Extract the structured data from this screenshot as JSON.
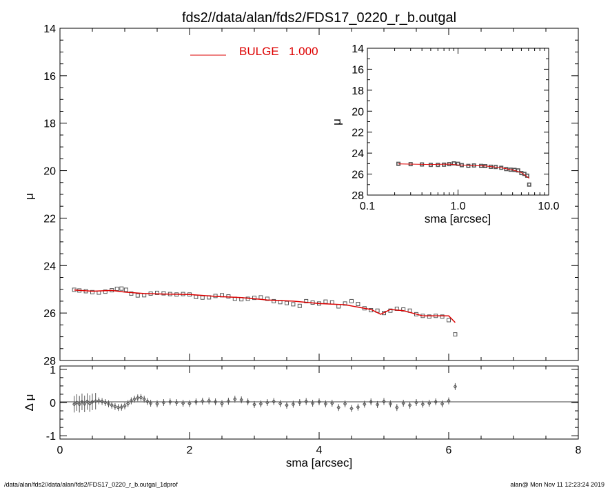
{
  "page_title": "fds2//data/alan/fds2/FDS17_0220_r_b.outgal",
  "footer": {
    "left": "/data/alan/fds2//data/alan/fds2/FDS17_0220_r_b.outgal_1dprof",
    "right": "alan@  Mon Nov 11 12:23:24 2019"
  },
  "colors": {
    "model": "#dd0000",
    "data": "#555555",
    "axes": "#000000"
  },
  "chart_data": [
    {
      "id": "main",
      "type": "scatter",
      "title": "fds2//data/alan/fds2/FDS17_0220_r_b.outgal",
      "xlabel": "",
      "ylabel": "μ",
      "xlim": [
        0,
        8
      ],
      "ylim": [
        28,
        14
      ],
      "y_inverted": true,
      "yticks": [
        "14",
        "16",
        "18",
        "20",
        "22",
        "24",
        "26",
        "28"
      ],
      "legend": {
        "label": "BULGE",
        "value": "1.000",
        "placement": "top-center"
      },
      "series": [
        {
          "name": "BULGE",
          "kind": "line",
          "points": [
            [
              0.22,
              25.03
            ],
            [
              0.5,
              25.08
            ],
            [
              0.8,
              25.05
            ],
            [
              1.0,
              25.12
            ],
            [
              1.3,
              25.18
            ],
            [
              1.6,
              25.2
            ],
            [
              2.0,
              25.22
            ],
            [
              2.4,
              25.3
            ],
            [
              2.8,
              25.35
            ],
            [
              3.2,
              25.45
            ],
            [
              3.6,
              25.5
            ],
            [
              4.0,
              25.6
            ],
            [
              4.4,
              25.65
            ],
            [
              4.8,
              25.85
            ],
            [
              4.95,
              26.05
            ],
            [
              5.1,
              25.85
            ],
            [
              5.3,
              25.9
            ],
            [
              5.6,
              26.12
            ],
            [
              6.0,
              26.12
            ],
            [
              6.1,
              26.4
            ]
          ]
        },
        {
          "name": "data",
          "kind": "squares",
          "points": [
            [
              0.22,
              25.02
            ],
            [
              0.3,
              25.05
            ],
            [
              0.4,
              25.08
            ],
            [
              0.5,
              25.12
            ],
            [
              0.6,
              25.14
            ],
            [
              0.7,
              25.1
            ],
            [
              0.8,
              25.04
            ],
            [
              0.88,
              24.98
            ],
            [
              0.95,
              24.97
            ],
            [
              1.02,
              25.02
            ],
            [
              1.1,
              25.18
            ],
            [
              1.2,
              25.26
            ],
            [
              1.3,
              25.25
            ],
            [
              1.4,
              25.18
            ],
            [
              1.5,
              25.15
            ],
            [
              1.6,
              25.17
            ],
            [
              1.7,
              25.2
            ],
            [
              1.8,
              25.22
            ],
            [
              1.9,
              25.2
            ],
            [
              2.0,
              25.22
            ],
            [
              2.1,
              25.32
            ],
            [
              2.2,
              25.35
            ],
            [
              2.3,
              25.34
            ],
            [
              2.4,
              25.28
            ],
            [
              2.5,
              25.25
            ],
            [
              2.6,
              25.3
            ],
            [
              2.7,
              25.4
            ],
            [
              2.8,
              25.42
            ],
            [
              2.9,
              25.4
            ],
            [
              3.0,
              25.36
            ],
            [
              3.1,
              25.34
            ],
            [
              3.2,
              25.4
            ],
            [
              3.3,
              25.5
            ],
            [
              3.4,
              25.54
            ],
            [
              3.5,
              25.58
            ],
            [
              3.6,
              25.63
            ],
            [
              3.7,
              25.7
            ],
            [
              3.8,
              25.5
            ],
            [
              3.9,
              25.56
            ],
            [
              4.0,
              25.6
            ],
            [
              4.1,
              25.52
            ],
            [
              4.2,
              25.55
            ],
            [
              4.3,
              25.72
            ],
            [
              4.4,
              25.6
            ],
            [
              4.5,
              25.5
            ],
            [
              4.6,
              25.62
            ],
            [
              4.7,
              25.8
            ],
            [
              4.8,
              25.88
            ],
            [
              4.9,
              25.9
            ],
            [
              5.0,
              26.0
            ],
            [
              5.1,
              25.9
            ],
            [
              5.2,
              25.82
            ],
            [
              5.3,
              25.85
            ],
            [
              5.4,
              25.9
            ],
            [
              5.5,
              26.05
            ],
            [
              5.6,
              26.12
            ],
            [
              5.7,
              26.15
            ],
            [
              5.8,
              26.12
            ],
            [
              5.9,
              26.15
            ],
            [
              6.0,
              26.3
            ],
            [
              6.1,
              26.9
            ]
          ]
        }
      ]
    },
    {
      "id": "residual",
      "type": "scatter",
      "xlabel": "sma [arcsec]",
      "ylabel": "Δ μ",
      "xlim": [
        0,
        8
      ],
      "ylim": [
        -1.1,
        1.1
      ],
      "xticks": [
        "0",
        "2",
        "4",
        "6",
        "8"
      ],
      "yticks": [
        "1",
        "0",
        "-1"
      ],
      "series": [
        {
          "name": "residual",
          "kind": "errorbars",
          "points": [
            [
              0.22,
              -0.05
            ],
            [
              0.26,
              0.0
            ],
            [
              0.3,
              -0.05
            ],
            [
              0.34,
              0.02
            ],
            [
              0.38,
              -0.04
            ],
            [
              0.42,
              0.03
            ],
            [
              0.46,
              -0.03
            ],
            [
              0.5,
              0.02
            ],
            [
              0.55,
              0.04
            ],
            [
              0.6,
              0.05
            ],
            [
              0.65,
              0.03
            ],
            [
              0.7,
              0.0
            ],
            [
              0.75,
              -0.04
            ],
            [
              0.8,
              -0.08
            ],
            [
              0.85,
              -0.12
            ],
            [
              0.9,
              -0.15
            ],
            [
              0.95,
              -0.14
            ],
            [
              1.0,
              -0.1
            ],
            [
              1.05,
              -0.03
            ],
            [
              1.1,
              0.05
            ],
            [
              1.15,
              0.1
            ],
            [
              1.2,
              0.14
            ],
            [
              1.25,
              0.15
            ],
            [
              1.3,
              0.1
            ],
            [
              1.35,
              0.03
            ],
            [
              1.4,
              -0.02
            ],
            [
              1.5,
              -0.04
            ],
            [
              1.6,
              0.0
            ],
            [
              1.7,
              0.02
            ],
            [
              1.8,
              0.0
            ],
            [
              1.9,
              -0.02
            ],
            [
              2.0,
              -0.03
            ],
            [
              2.1,
              0.02
            ],
            [
              2.2,
              0.04
            ],
            [
              2.3,
              0.05
            ],
            [
              2.4,
              0.02
            ],
            [
              2.5,
              -0.03
            ],
            [
              2.6,
              0.04
            ],
            [
              2.7,
              0.1
            ],
            [
              2.8,
              0.08
            ],
            [
              2.9,
              0.02
            ],
            [
              3.0,
              -0.06
            ],
            [
              3.1,
              -0.04
            ],
            [
              3.2,
              0.0
            ],
            [
              3.3,
              0.03
            ],
            [
              3.4,
              -0.03
            ],
            [
              3.5,
              -0.08
            ],
            [
              3.6,
              -0.05
            ],
            [
              3.7,
              0.0
            ],
            [
              3.8,
              0.03
            ],
            [
              3.9,
              -0.02
            ],
            [
              4.0,
              0.02
            ],
            [
              4.1,
              -0.04
            ],
            [
              4.2,
              -0.02
            ],
            [
              4.3,
              -0.15
            ],
            [
              4.4,
              -0.04
            ],
            [
              4.5,
              -0.18
            ],
            [
              4.6,
              -0.14
            ],
            [
              4.7,
              -0.05
            ],
            [
              4.8,
              0.02
            ],
            [
              4.9,
              -0.06
            ],
            [
              5.0,
              0.03
            ],
            [
              5.1,
              -0.04
            ],
            [
              5.2,
              -0.15
            ],
            [
              5.3,
              -0.02
            ],
            [
              5.4,
              -0.08
            ],
            [
              5.5,
              0.0
            ],
            [
              5.6,
              -0.05
            ],
            [
              5.7,
              -0.02
            ],
            [
              5.8,
              0.02
            ],
            [
              5.9,
              -0.04
            ],
            [
              6.0,
              0.05
            ],
            [
              6.1,
              0.48
            ]
          ]
        }
      ]
    },
    {
      "id": "inset",
      "type": "scatter",
      "xlabel": "sma [arcsec]",
      "ylabel": "μ",
      "x_scale": "log",
      "xlim": [
        0.1,
        10
      ],
      "ylim": [
        28,
        14
      ],
      "y_inverted": true,
      "xticks": [
        "0.1",
        "1.0",
        "10.0"
      ],
      "yticks": [
        "14",
        "16",
        "18",
        "20",
        "22",
        "24",
        "26",
        "28"
      ],
      "series": [
        {
          "name": "data",
          "kind": "squares",
          "points": [
            [
              0.22,
              25.02
            ],
            [
              0.3,
              25.05
            ],
            [
              0.4,
              25.08
            ],
            [
              0.5,
              25.12
            ],
            [
              0.6,
              25.12
            ],
            [
              0.7,
              25.1
            ],
            [
              0.8,
              25.05
            ],
            [
              0.9,
              24.98
            ],
            [
              1.0,
              25.02
            ],
            [
              1.1,
              25.15
            ],
            [
              1.3,
              25.22
            ],
            [
              1.5,
              25.18
            ],
            [
              1.8,
              25.22
            ],
            [
              2.0,
              25.24
            ],
            [
              2.3,
              25.3
            ],
            [
              2.6,
              25.32
            ],
            [
              3.0,
              25.4
            ],
            [
              3.4,
              25.52
            ],
            [
              3.8,
              25.58
            ],
            [
              4.2,
              25.6
            ],
            [
              4.6,
              25.65
            ],
            [
              5.0,
              25.9
            ],
            [
              5.4,
              25.98
            ],
            [
              5.8,
              26.15
            ],
            [
              6.1,
              27.0
            ]
          ]
        },
        {
          "name": "BULGE",
          "kind": "line",
          "points": [
            [
              0.22,
              25.03
            ],
            [
              0.5,
              25.08
            ],
            [
              0.8,
              25.05
            ],
            [
              1.0,
              25.12
            ],
            [
              1.5,
              25.2
            ],
            [
              2.0,
              25.22
            ],
            [
              3.0,
              25.4
            ],
            [
              4.0,
              25.6
            ],
            [
              5.0,
              25.85
            ],
            [
              6.1,
              26.4
            ]
          ]
        }
      ]
    }
  ]
}
